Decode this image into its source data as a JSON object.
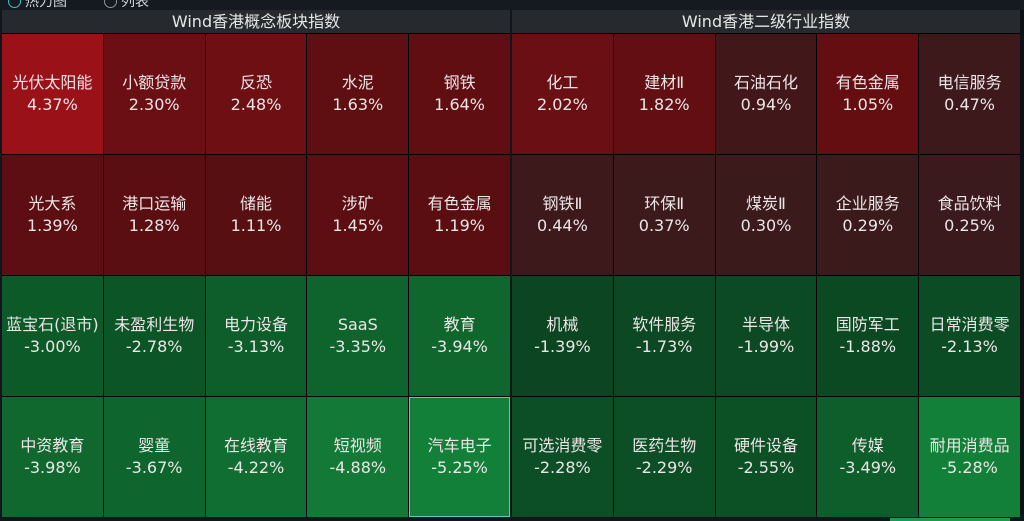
{
  "view_toggle": {
    "options": [
      {
        "label": "热力图",
        "selected": true
      },
      {
        "label": "列表",
        "selected": false
      }
    ]
  },
  "panels": [
    {
      "title": "Wind香港概念板块指数",
      "cells": [
        {
          "name": "光伏太阳能",
          "change": "4.37%",
          "color": "#9a1117"
        },
        {
          "name": "小额贷款",
          "change": "2.30%",
          "color": "#6c0f14"
        },
        {
          "name": "反恐",
          "change": "2.48%",
          "color": "#6e0f14"
        },
        {
          "name": "水泥",
          "change": "1.63%",
          "color": "#5f0e12"
        },
        {
          "name": "钢铁",
          "change": "1.64%",
          "color": "#600e12"
        },
        {
          "name": "光大系",
          "change": "1.39%",
          "color": "#5c0e12"
        },
        {
          "name": "港口运输",
          "change": "1.28%",
          "color": "#5a0e12"
        },
        {
          "name": "储能",
          "change": "1.11%",
          "color": "#580f12"
        },
        {
          "name": "涉矿",
          "change": "1.45%",
          "color": "#5d0e12"
        },
        {
          "name": "有色金属",
          "change": "1.19%",
          "color": "#5a0e12"
        },
        {
          "name": "蓝宝石(退市)",
          "change": "-3.00%",
          "color": "#0d5a29"
        },
        {
          "name": "未盈利生物",
          "change": "-2.78%",
          "color": "#0c5527"
        },
        {
          "name": "电力设备",
          "change": "-3.13%",
          "color": "#0e5e2b"
        },
        {
          "name": "SaaS",
          "change": "-3.35%",
          "color": "#0f632d"
        },
        {
          "name": "教育",
          "change": "-3.94%",
          "color": "#0f672e"
        },
        {
          "name": "中资教育",
          "change": "-3.98%",
          "color": "#10682f"
        },
        {
          "name": "婴童",
          "change": "-3.67%",
          "color": "#0f652e"
        },
        {
          "name": "在线教育",
          "change": "-4.22%",
          "color": "#116e32"
        },
        {
          "name": "短视频",
          "change": "-4.88%",
          "color": "#127936"
        },
        {
          "name": "汽车电子",
          "change": "-5.25%",
          "color": "#13803a",
          "selected": true
        }
      ]
    },
    {
      "title": "Wind香港二级行业指数",
      "cells": [
        {
          "name": "化工",
          "change": "2.02%",
          "color": "#6a0f13"
        },
        {
          "name": "建材Ⅱ",
          "change": "1.82%",
          "color": "#620e12"
        },
        {
          "name": "石油石化",
          "change": "0.94%",
          "color": "#42171a"
        },
        {
          "name": "有色金属",
          "change": "1.05%",
          "color": "#650e12"
        },
        {
          "name": "电信服务",
          "change": "0.47%",
          "color": "#3e191c"
        },
        {
          "name": "钢铁Ⅱ",
          "change": "0.44%",
          "color": "#3d191c"
        },
        {
          "name": "环保Ⅱ",
          "change": "0.37%",
          "color": "#3c1a1c"
        },
        {
          "name": "煤炭Ⅱ",
          "change": "0.30%",
          "color": "#3b1a1c"
        },
        {
          "name": "企业服务",
          "change": "0.29%",
          "color": "#3b1a1c"
        },
        {
          "name": "食品饮料",
          "change": "0.25%",
          "color": "#3a1a1c"
        },
        {
          "name": "机械",
          "change": "-1.39%",
          "color": "#0b4522"
        },
        {
          "name": "软件服务",
          "change": "-1.73%",
          "color": "#0b4823"
        },
        {
          "name": "半导体",
          "change": "-1.99%",
          "color": "#0b4a24"
        },
        {
          "name": "国防军工",
          "change": "-1.88%",
          "color": "#0b4923"
        },
        {
          "name": "日常消费零",
          "change": "-2.13%",
          "color": "#0c4c25"
        },
        {
          "name": "可选消费零",
          "change": "-2.28%",
          "color": "#0c4e25"
        },
        {
          "name": "医药生物",
          "change": "-2.29%",
          "color": "#0c4e25"
        },
        {
          "name": "硬件设备",
          "change": "-2.55%",
          "color": "#0c5126"
        },
        {
          "name": "传媒",
          "change": "-3.49%",
          "color": "#0e5e2b"
        },
        {
          "name": "耐用消费品",
          "change": "-5.28%",
          "color": "#13803a"
        }
      ]
    }
  ]
}
